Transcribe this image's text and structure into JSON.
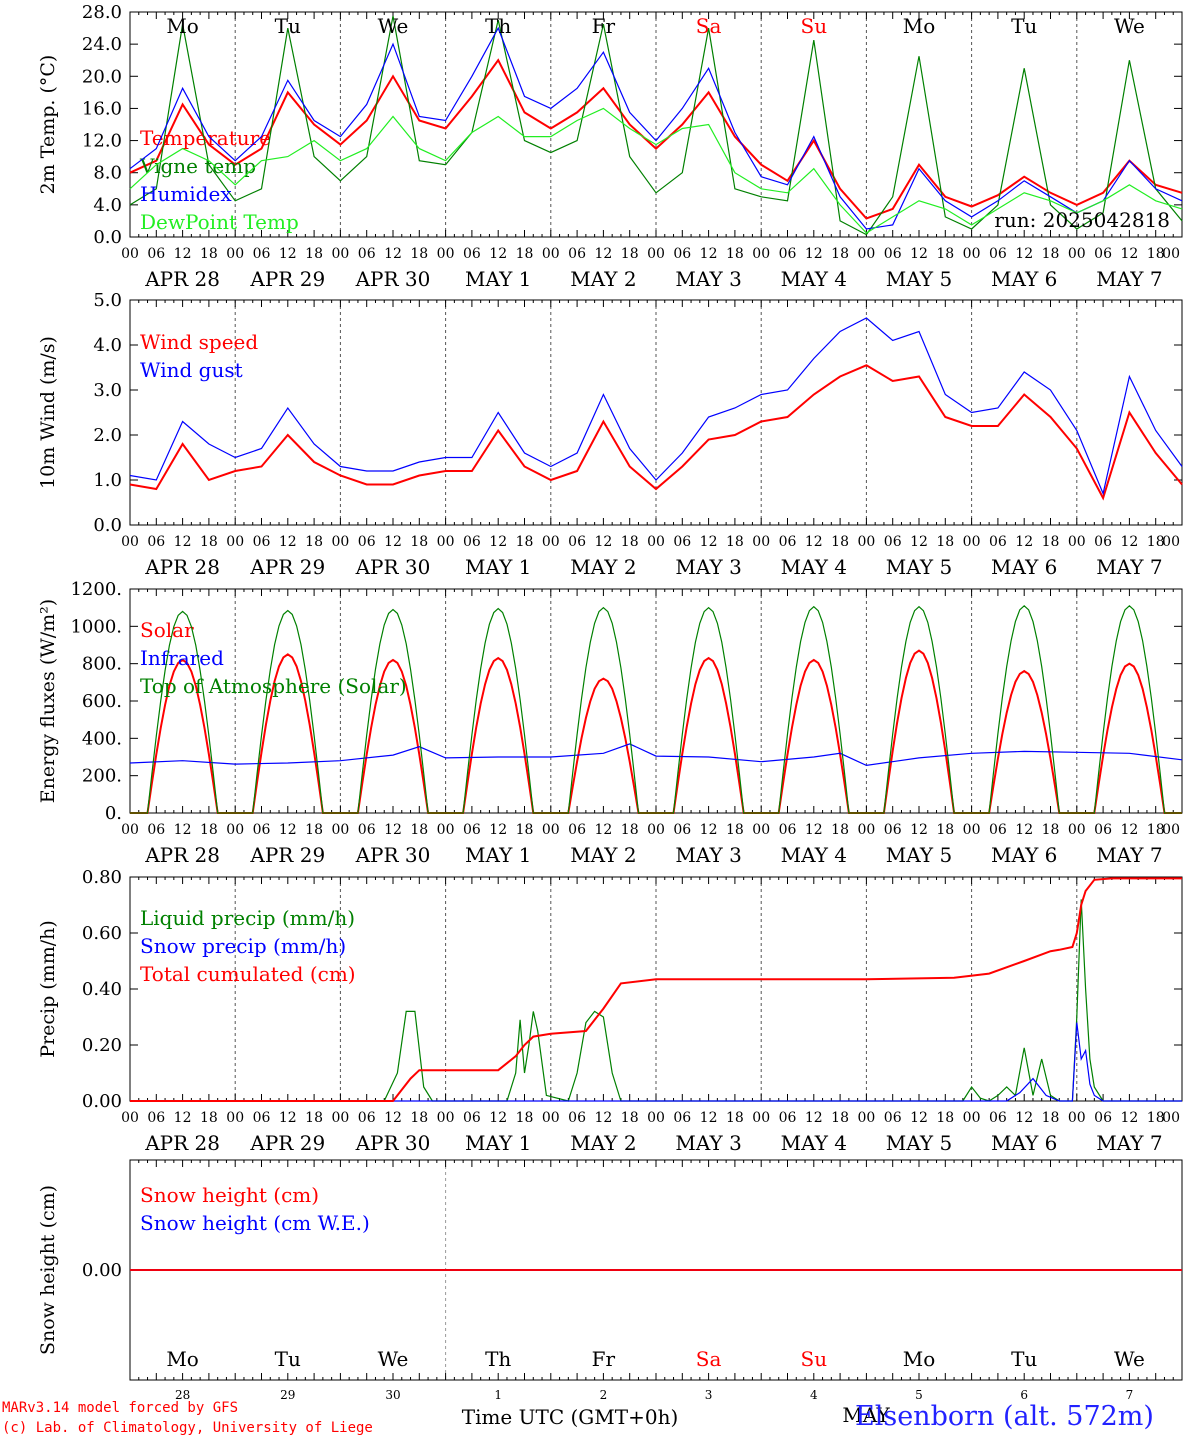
{
  "colors": {
    "red": "#ff0000",
    "green": "#008000",
    "blue": "#0000ff",
    "lightgreen": "#22ee22",
    "weekend": "#ff0000"
  },
  "run_label": "run: 2025042818",
  "time_axis": {
    "hour_ticks": [
      "00",
      "06",
      "12",
      "18"
    ],
    "date_labels": [
      "APR 28",
      "APR 29",
      "APR 30",
      "MAY  1",
      "MAY  2",
      "MAY  3",
      "MAY  4",
      "MAY  5",
      "MAY  6",
      "MAY  7"
    ],
    "weekdays": [
      "Mo",
      "Tu",
      "We",
      "Th",
      "Fr",
      "Sa",
      "Su",
      "Mo",
      "Tu",
      "We"
    ],
    "weekend_days": [
      5,
      6
    ],
    "day_numbers": [
      "28",
      "29",
      "30",
      "1",
      "2",
      "3",
      "4",
      "5",
      "6",
      "7"
    ],
    "month_label": "MAY",
    "xlabel": "Time UTC (GMT+0h)"
  },
  "chart_data": [
    {
      "type": "line",
      "ylabel": "2m Temp. (°C)",
      "ylim": [
        0,
        28
      ],
      "yticks": [
        "0.0",
        "4.0",
        "8.0",
        "12.0",
        "16.0",
        "20.0",
        "24.0",
        "28.0"
      ],
      "yticks_values": [
        0,
        4,
        8,
        12,
        16,
        20,
        24,
        28
      ],
      "grid": "day-dashed",
      "legend": "top-left",
      "series": [
        {
          "name": "Temperature",
          "color": "red",
          "x": [
            0,
            6,
            12,
            18,
            24,
            30,
            36,
            42,
            48,
            54,
            60,
            66,
            72,
            78,
            84,
            90,
            96,
            102,
            108,
            114,
            120,
            126,
            132,
            138,
            144,
            150,
            156,
            162,
            168,
            174,
            180,
            186,
            192,
            198,
            204,
            210,
            216,
            222,
            228,
            234,
            240
          ],
          "values": [
            8.0,
            9.5,
            16.5,
            11.5,
            9.0,
            11.0,
            18.0,
            14.0,
            11.5,
            14.5,
            20.0,
            14.5,
            13.5,
            17.5,
            22.0,
            15.5,
            13.5,
            15.5,
            18.5,
            14.0,
            11.0,
            14.0,
            18.0,
            12.5,
            9.0,
            7.0,
            12.0,
            6.0,
            2.3,
            3.5,
            9.0,
            5.0,
            3.8,
            5.2,
            7.5,
            5.5,
            4.0,
            5.5,
            9.5,
            6.5,
            5.5
          ]
        },
        {
          "name": "Vigne temp",
          "color": "green",
          "x": [
            0,
            6,
            12,
            18,
            24,
            30,
            36,
            42,
            48,
            54,
            60,
            66,
            72,
            78,
            84,
            90,
            96,
            102,
            108,
            114,
            120,
            126,
            132,
            138,
            144,
            150,
            156,
            162,
            168,
            174,
            180,
            186,
            192,
            198,
            204,
            210,
            216,
            222,
            228,
            234,
            240
          ],
          "values": [
            4.0,
            6.0,
            26.5,
            9.0,
            4.5,
            6.0,
            26.0,
            10.0,
            7.0,
            10.0,
            27.5,
            9.5,
            9.0,
            13.0,
            27.0,
            12.0,
            10.5,
            12.0,
            26.5,
            10.0,
            5.5,
            8.0,
            26.0,
            6.0,
            5.0,
            4.5,
            24.5,
            2.0,
            0.3,
            5.0,
            22.5,
            2.5,
            1.0,
            4.0,
            21.0,
            4.0,
            1.0,
            3.0,
            22.0,
            6.0,
            2.0
          ]
        },
        {
          "name": "Humidex",
          "color": "blue",
          "x": [
            0,
            6,
            12,
            18,
            24,
            30,
            36,
            42,
            48,
            54,
            60,
            66,
            72,
            78,
            84,
            90,
            96,
            102,
            108,
            114,
            120,
            126,
            132,
            138,
            144,
            150,
            156,
            162,
            168,
            174,
            180,
            186,
            192,
            198,
            204,
            210,
            216,
            222,
            228,
            234,
            240
          ],
          "values": [
            8.5,
            11.0,
            18.5,
            12.5,
            9.5,
            12.5,
            19.5,
            14.5,
            12.5,
            16.5,
            24.0,
            15.0,
            14.5,
            20.0,
            26.0,
            17.5,
            16.0,
            18.5,
            23.0,
            15.5,
            12.0,
            16.0,
            21.0,
            13.0,
            7.5,
            6.5,
            12.5,
            5.0,
            1.0,
            1.5,
            8.5,
            4.5,
            2.5,
            4.5,
            7.0,
            5.0,
            3.0,
            4.5,
            9.5,
            6.0,
            4.5
          ]
        },
        {
          "name": "DewPoint Temp",
          "color": "lightgreen",
          "x": [
            0,
            6,
            12,
            18,
            24,
            30,
            36,
            42,
            48,
            54,
            60,
            66,
            72,
            78,
            84,
            90,
            96,
            102,
            108,
            114,
            120,
            126,
            132,
            138,
            144,
            150,
            156,
            162,
            168,
            174,
            180,
            186,
            192,
            198,
            204,
            210,
            216,
            222,
            228,
            234,
            240
          ],
          "values": [
            6.0,
            9.0,
            11.0,
            9.5,
            6.5,
            9.5,
            10.0,
            12.0,
            9.5,
            11.0,
            15.0,
            11.0,
            9.5,
            13.0,
            15.0,
            12.5,
            12.5,
            14.5,
            16.0,
            13.5,
            11.5,
            13.5,
            14.0,
            8.0,
            6.0,
            5.5,
            8.5,
            4.0,
            0.5,
            2.5,
            4.5,
            3.5,
            1.5,
            3.5,
            5.5,
            4.5,
            3.0,
            4.5,
            6.5,
            4.5,
            3.5
          ]
        }
      ]
    },
    {
      "type": "line",
      "ylabel": "10m Wind (m/s)",
      "ylim": [
        0,
        5
      ],
      "yticks": [
        "0.0",
        "1.0",
        "2.0",
        "3.0",
        "4.0",
        "5.0"
      ],
      "yticks_values": [
        0,
        1,
        2,
        3,
        4,
        5
      ],
      "grid": "day-dashed",
      "legend": "top-left",
      "series": [
        {
          "name": "Wind speed",
          "color": "red",
          "x": [
            0,
            6,
            12,
            18,
            24,
            30,
            36,
            42,
            48,
            54,
            60,
            66,
            72,
            78,
            84,
            90,
            96,
            102,
            108,
            114,
            120,
            126,
            132,
            138,
            144,
            150,
            156,
            162,
            168,
            174,
            180,
            186,
            192,
            198,
            204,
            210,
            216,
            222,
            228,
            234,
            240
          ],
          "values": [
            0.9,
            0.8,
            1.8,
            1.0,
            1.2,
            1.3,
            2.0,
            1.4,
            1.1,
            0.9,
            0.9,
            1.1,
            1.2,
            1.2,
            2.1,
            1.3,
            1.0,
            1.2,
            2.3,
            1.3,
            0.8,
            1.3,
            1.9,
            2.0,
            2.3,
            2.4,
            2.9,
            3.3,
            3.55,
            3.2,
            3.3,
            2.4,
            2.2,
            2.2,
            2.9,
            2.4,
            1.7,
            0.6,
            2.5,
            1.6,
            0.9
          ]
        },
        {
          "name": "Wind gust",
          "color": "blue",
          "x": [
            0,
            6,
            12,
            18,
            24,
            30,
            36,
            42,
            48,
            54,
            60,
            66,
            72,
            78,
            84,
            90,
            96,
            102,
            108,
            114,
            120,
            126,
            132,
            138,
            144,
            150,
            156,
            162,
            168,
            174,
            180,
            186,
            192,
            198,
            204,
            210,
            216,
            222,
            228,
            234,
            240
          ],
          "values": [
            1.1,
            1.0,
            2.3,
            1.8,
            1.5,
            1.7,
            2.6,
            1.8,
            1.3,
            1.2,
            1.2,
            1.4,
            1.5,
            1.5,
            2.5,
            1.6,
            1.3,
            1.6,
            2.9,
            1.7,
            1.0,
            1.6,
            2.4,
            2.6,
            2.9,
            3.0,
            3.7,
            4.3,
            4.6,
            4.1,
            4.3,
            2.9,
            2.5,
            2.6,
            3.4,
            3.0,
            2.1,
            0.7,
            3.3,
            2.1,
            1.3
          ]
        }
      ]
    },
    {
      "type": "line",
      "ylabel": "Energy fluxes (W/m²)",
      "ylim": [
        0,
        1200
      ],
      "yticks": [
        "0.",
        "200.",
        "400.",
        "600.",
        "800.",
        "1000.",
        "1200."
      ],
      "yticks_values": [
        0,
        200,
        400,
        600,
        800,
        1000,
        1200
      ],
      "grid": "day-dashed",
      "legend": "top-left",
      "series": [
        {
          "name": "Solar",
          "color": "red",
          "kind": "diurnal",
          "peaks": [
            820,
            850,
            820,
            830,
            720,
            830,
            820,
            870,
            760,
            800
          ]
        },
        {
          "name": "Infrared",
          "color": "blue",
          "x": [
            0,
            12,
            24,
            36,
            48,
            60,
            66,
            72,
            84,
            96,
            108,
            114,
            120,
            132,
            144,
            156,
            162,
            168,
            180,
            192,
            204,
            216,
            228,
            240
          ],
          "values": [
            268,
            280,
            262,
            268,
            280,
            310,
            355,
            295,
            300,
            300,
            320,
            370,
            305,
            300,
            275,
            300,
            320,
            255,
            295,
            320,
            330,
            325,
            320,
            285
          ]
        },
        {
          "name": "Top of Atmosphere (Solar)",
          "color": "green",
          "kind": "diurnal",
          "peaks": [
            1080,
            1085,
            1090,
            1095,
            1100,
            1100,
            1105,
            1105,
            1110,
            1110
          ]
        }
      ]
    },
    {
      "type": "line",
      "ylabel": "Precip (mm/h)",
      "ylim": [
        0,
        0.8
      ],
      "yticks": [
        "0.00",
        "0.20",
        "0.40",
        "0.60",
        "0.80"
      ],
      "yticks_values": [
        0,
        0.2,
        0.4,
        0.6,
        0.8
      ],
      "grid": "day-dashed",
      "legend": "top-left",
      "series": [
        {
          "name": "Liquid precip (mm/h)",
          "color": "green",
          "x": [
            0,
            58,
            61,
            63,
            65,
            67,
            69,
            86,
            88,
            89,
            90,
            91,
            92,
            93,
            95,
            100,
            102,
            104,
            106,
            108,
            110,
            112,
            120,
            190,
            192,
            194,
            196,
            198,
            200,
            202,
            204,
            206,
            208,
            210,
            212,
            215,
            216,
            217,
            218,
            219,
            220,
            222,
            240
          ],
          "values": [
            0,
            0,
            0.1,
            0.32,
            0.32,
            0.05,
            0,
            0,
            0.1,
            0.29,
            0.1,
            0.2,
            0.32,
            0.25,
            0.02,
            0,
            0.1,
            0.28,
            0.32,
            0.3,
            0.1,
            0,
            0,
            0,
            0.05,
            0.01,
            0,
            0.02,
            0.05,
            0.02,
            0.19,
            0.02,
            0.15,
            0.02,
            0,
            0,
            0.3,
            0.72,
            0.4,
            0.15,
            0.05,
            0,
            0
          ]
        },
        {
          "name": "Snow precip (mm/h)",
          "color": "blue",
          "x": [
            0,
            200,
            203,
            206,
            209,
            212,
            215,
            216,
            217,
            218,
            219,
            220,
            222,
            240
          ],
          "values": [
            0,
            0,
            0.03,
            0.08,
            0.02,
            0,
            0,
            0.28,
            0.15,
            0.18,
            0.06,
            0.02,
            0,
            0
          ]
        },
        {
          "name": "Total cumulated (cm)",
          "color": "red",
          "x": [
            0,
            60,
            64,
            66,
            84,
            88,
            90,
            92,
            96,
            104,
            108,
            112,
            120,
            144,
            168,
            188,
            196,
            204,
            210,
            212,
            215,
            216,
            217,
            218,
            220,
            224,
            240
          ],
          "values": [
            0,
            0,
            0.08,
            0.11,
            0.11,
            0.16,
            0.2,
            0.23,
            0.24,
            0.25,
            0.33,
            0.42,
            0.435,
            0.435,
            0.435,
            0.44,
            0.455,
            0.5,
            0.535,
            0.54,
            0.55,
            0.6,
            0.7,
            0.75,
            0.79,
            0.795,
            0.795
          ]
        }
      ]
    },
    {
      "type": "line",
      "ylabel": "Snow height (cm)",
      "ylim": [
        -1,
        1
      ],
      "yticks": [
        "0.00"
      ],
      "yticks_values": [
        0
      ],
      "grid": "none",
      "legend": "top-left",
      "series": [
        {
          "name": "Snow height (cm)",
          "color": "red",
          "x": [
            0,
            240
          ],
          "values": [
            0,
            0
          ]
        },
        {
          "name": "Snow height (cm W.E.)",
          "color": "blue",
          "x": [
            0,
            240
          ],
          "values": [
            0,
            0
          ]
        }
      ]
    }
  ],
  "footer": {
    "credit_line1": "MARv3.14 model forced by GFS",
    "credit_line2": "(c) Lab. of Climatology, University of Liege",
    "station": "Elsenborn (alt. 572m)"
  }
}
